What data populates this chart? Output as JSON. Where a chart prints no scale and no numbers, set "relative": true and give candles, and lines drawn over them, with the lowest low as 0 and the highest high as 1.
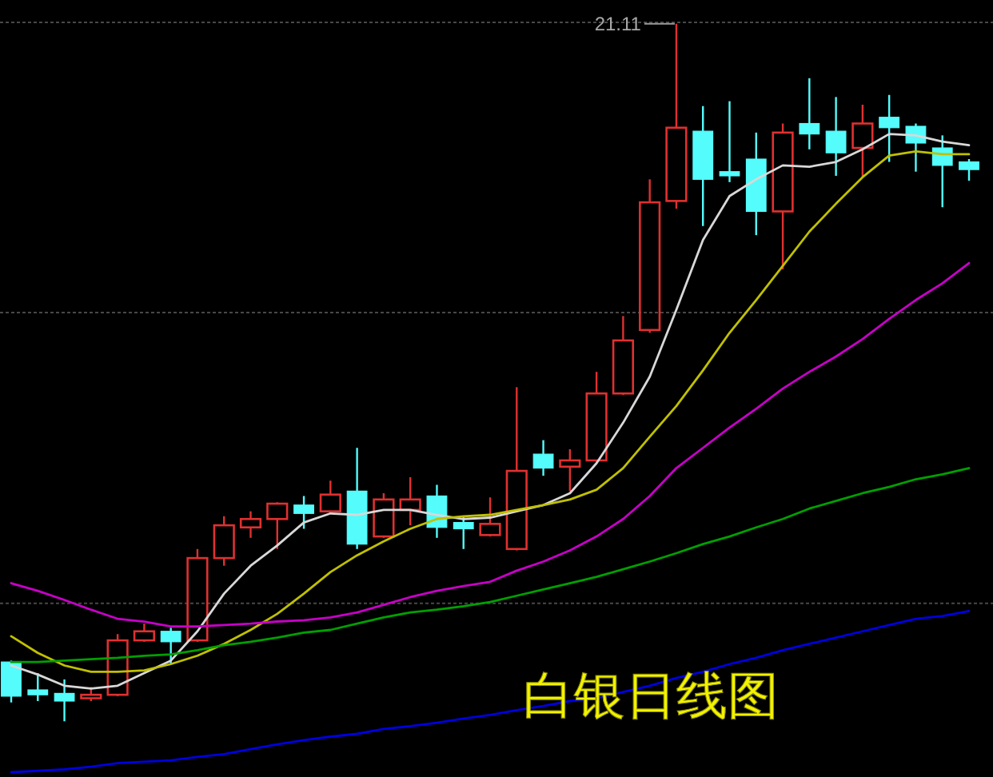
{
  "chart_data": {
    "type": "candlestick",
    "title": "白银日线图",
    "relative": true,
    "categories": [
      null,
      null,
      null,
      null,
      null,
      null,
      null,
      null,
      null,
      null,
      null,
      null,
      null,
      null,
      null,
      null,
      null,
      null,
      null,
      null,
      null,
      null,
      null,
      null,
      null,
      null,
      null,
      null,
      null,
      null,
      null,
      null,
      null,
      null,
      null,
      null,
      null
    ],
    "ohlc": [
      [
        0.085,
        0.087,
        0.027,
        0.036
      ],
      [
        0.045,
        0.069,
        0.029,
        0.038
      ],
      [
        0.04,
        0.06,
        0,
        0.029
      ],
      [
        0.033,
        0.049,
        0.029,
        0.038
      ],
      [
        0.038,
        0.125,
        0.036,
        0.116
      ],
      [
        0.116,
        0.14,
        0.114,
        0.129
      ],
      [
        0.129,
        0.134,
        0.082,
        0.114
      ],
      [
        0.116,
        0.247,
        0.114,
        0.234
      ],
      [
        0.234,
        0.294,
        0.223,
        0.281
      ],
      [
        0.278,
        0.301,
        0.263,
        0.29
      ],
      [
        0.29,
        0.314,
        0.247,
        0.312
      ],
      [
        0.31,
        0.323,
        0.276,
        0.298
      ],
      [
        0.301,
        0.345,
        0.298,
        0.325
      ],
      [
        0.33,
        0.392,
        0.247,
        0.254
      ],
      [
        0.265,
        0.327,
        0.263,
        0.318
      ],
      [
        0.303,
        0.35,
        0.281,
        0.318
      ],
      [
        0.323,
        0.339,
        0.263,
        0.278
      ],
      [
        0.285,
        0.294,
        0.247,
        0.276
      ],
      [
        0.267,
        0.321,
        0.265,
        0.283
      ],
      [
        0.247,
        0.479,
        0.245,
        0.359
      ],
      [
        0.383,
        0.403,
        0.352,
        0.363
      ],
      [
        0.365,
        0.39,
        0.33,
        0.374
      ],
      [
        0.374,
        0.501,
        0.372,
        0.47
      ],
      [
        0.47,
        0.581,
        0.468,
        0.546
      ],
      [
        0.561,
        0.777,
        0.557,
        0.744
      ],
      [
        0.746,
        1,
        0.735,
        0.851
      ],
      [
        0.846,
        0.882,
        0.71,
        0.777
      ],
      [
        0.788,
        0.889,
        0.773,
        0.782
      ],
      [
        0.806,
        0.844,
        0.697,
        0.731
      ],
      [
        0.731,
        0.857,
        0.648,
        0.844
      ],
      [
        0.857,
        0.922,
        0.82,
        0.842
      ],
      [
        0.846,
        0.895,
        0.782,
        0.815
      ],
      [
        0.822,
        0.884,
        0.78,
        0.857
      ],
      [
        0.866,
        0.898,
        0.802,
        0.851
      ],
      [
        0.853,
        0.857,
        0.788,
        0.829
      ],
      [
        0.822,
        0.84,
        0.737,
        0.797
      ],
      [
        0.802,
        0.806,
        0.775,
        0.791
      ]
    ],
    "colors": [
      "#54fcfc",
      "#54fcfc",
      "#54fcfc",
      "#e03030",
      "#e03030",
      "#e03030",
      "#54fcfc",
      "#e03030",
      "#e03030",
      "#e03030",
      "#e03030",
      "#54fcfc",
      "#e03030",
      "#54fcfc",
      "#e03030",
      "#e03030",
      "#54fcfc",
      "#54fcfc",
      "#e03030",
      "#e03030",
      "#54fcfc",
      "#e03030",
      "#e03030",
      "#e03030",
      "#e03030",
      "#e03030",
      "#54fcfc",
      "#54fcfc",
      "#54fcfc",
      "#e03030",
      "#54fcfc",
      "#54fcfc",
      "#e03030",
      "#54fcfc",
      "#54fcfc",
      "#54fcfc",
      "#54fcfc"
    ],
    "series": [
      {
        "type": "line",
        "color": "#d8d8d8",
        "values": [
          0.08,
          0.067,
          0.051,
          0.047,
          0.051,
          0.069,
          0.087,
          0.129,
          0.183,
          0.223,
          0.252,
          0.285,
          0.298,
          0.296,
          0.303,
          0.303,
          0.296,
          0.29,
          0.292,
          0.301,
          0.31,
          0.327,
          0.37,
          0.428,
          0.494,
          0.59,
          0.69,
          0.753,
          0.777,
          0.797,
          0.795,
          0.802,
          0.82,
          0.842,
          0.84,
          0.831,
          0.826
        ]
      },
      {
        "type": "line",
        "color": "#c0c000",
        "values": [
          0.122,
          0.098,
          0.08,
          0.071,
          0.071,
          0.073,
          0.082,
          0.094,
          0.111,
          0.131,
          0.154,
          0.183,
          0.214,
          0.238,
          0.258,
          0.276,
          0.29,
          0.294,
          0.296,
          0.303,
          0.31,
          0.318,
          0.332,
          0.363,
          0.408,
          0.452,
          0.503,
          0.557,
          0.604,
          0.653,
          0.702,
          0.742,
          0.78,
          0.811,
          0.817,
          0.813,
          0.813
        ]
      },
      {
        "type": "line",
        "color": "#c800c8",
        "values": [
          0.198,
          0.187,
          0.174,
          0.16,
          0.147,
          0.143,
          0.136,
          0.136,
          0.138,
          0.14,
          0.143,
          0.145,
          0.149,
          0.156,
          0.167,
          0.178,
          0.187,
          0.194,
          0.2,
          0.216,
          0.229,
          0.245,
          0.265,
          0.29,
          0.323,
          0.363,
          0.392,
          0.421,
          0.448,
          0.477,
          0.501,
          0.523,
          0.548,
          0.577,
          0.604,
          0.628,
          0.657
        ]
      },
      {
        "type": "line",
        "color": "#00a000",
        "values": [
          0.085,
          0.085,
          0.087,
          0.089,
          0.091,
          0.094,
          0.096,
          0.102,
          0.109,
          0.114,
          0.12,
          0.127,
          0.131,
          0.14,
          0.149,
          0.156,
          0.16,
          0.165,
          0.171,
          0.18,
          0.189,
          0.198,
          0.207,
          0.218,
          0.229,
          0.241,
          0.254,
          0.265,
          0.278,
          0.29,
          0.305,
          0.316,
          0.327,
          0.336,
          0.347,
          0.354,
          0.363
        ]
      },
      {
        "type": "line",
        "color": "#0000e0",
        "values": [
          -0.073,
          -0.071,
          -0.069,
          -0.065,
          -0.06,
          -0.058,
          -0.056,
          -0.051,
          -0.047,
          -0.04,
          -0.033,
          -0.027,
          -0.022,
          -0.018,
          -0.011,
          -0.007,
          -0.002,
          0.004,
          0.009,
          0.016,
          0.022,
          0.029,
          0.033,
          0.042,
          0.051,
          0.062,
          0.071,
          0.082,
          0.091,
          0.102,
          0.111,
          0.12,
          0.129,
          0.138,
          0.147,
          0.151,
          0.158
        ]
      }
    ],
    "annotations": [
      {
        "text": "21.11",
        "y": 1
      }
    ],
    "ref_lines": [
      {
        "axis": "y",
        "value": 1.002,
        "color": "#484848",
        "line_style": "dotted"
      },
      {
        "axis": "y",
        "value": 0.586,
        "color": "#484848",
        "line_style": "dotted"
      },
      {
        "axis": "y",
        "value": 0.169,
        "color": "#484848",
        "line_style": "dotted"
      }
    ]
  }
}
